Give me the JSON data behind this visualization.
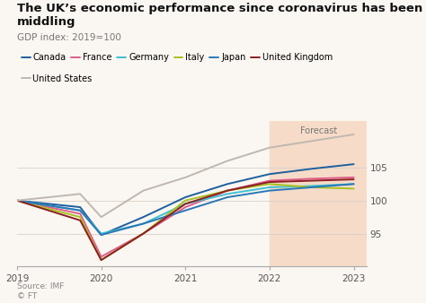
{
  "title": "The UK’s economic performance since coronavirus has been middling",
  "subtitle": "GDP index: 2019=100",
  "source": "Source: IMF\n© FT",
  "forecast_start": 2022,
  "x_years": [
    2019,
    2019.75,
    2020,
    2020.5,
    2021,
    2021.5,
    2022,
    2022.5,
    2023
  ],
  "series": {
    "Canada": {
      "color": "#1f5f9e",
      "values": [
        100,
        99.0,
        94.8,
        97.5,
        100.5,
        102.5,
        104.0,
        104.8,
        105.5
      ]
    },
    "France": {
      "color": "#e05c8a",
      "values": [
        100,
        98.0,
        91.5,
        95.0,
        99.0,
        101.5,
        103.0,
        103.3,
        103.5
      ]
    },
    "Germany": {
      "color": "#40c0d0",
      "values": [
        100,
        98.5,
        95.0,
        96.5,
        99.5,
        101.0,
        102.0,
        102.2,
        102.5
      ]
    },
    "Italy": {
      "color": "#a8c020",
      "values": [
        100,
        97.5,
        91.0,
        95.0,
        100.0,
        101.5,
        102.5,
        102.0,
        101.8
      ]
    },
    "Japan": {
      "color": "#2878b8",
      "values": [
        100,
        98.5,
        94.8,
        96.5,
        98.5,
        100.5,
        101.5,
        102.0,
        102.5
      ]
    },
    "United Kingdom": {
      "color": "#8b2020",
      "values": [
        100,
        97.0,
        91.0,
        95.0,
        99.5,
        101.5,
        102.8,
        103.0,
        103.2
      ]
    },
    "United States": {
      "color": "#c0b8b0",
      "values": [
        100,
        101.0,
        97.5,
        101.5,
        103.5,
        106.0,
        108.0,
        109.0,
        110.0
      ]
    }
  },
  "ylim": [
    90,
    112
  ],
  "yticks": [
    95,
    100,
    105
  ],
  "xlim": [
    2019,
    2023.15
  ],
  "xticks": [
    2019,
    2020,
    2021,
    2022,
    2023
  ],
  "forecast_color": "#f5dbc8",
  "background_color": "#faf6f2",
  "title_fontsize": 9.5,
  "subtitle_fontsize": 7.5,
  "tick_fontsize": 7.5,
  "legend_fontsize": 7
}
